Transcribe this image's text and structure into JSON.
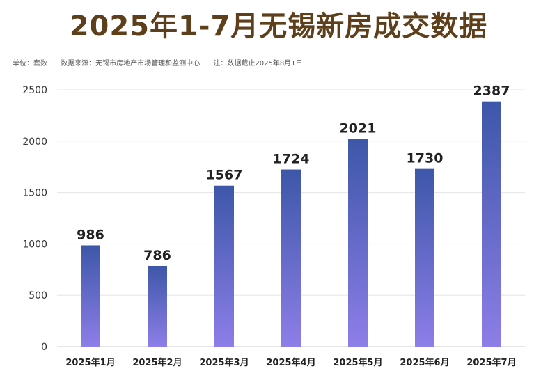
{
  "header": {
    "title": "2025年1-7月无锡新房成交数据",
    "unit_note": "单位：套数",
    "source_note": "数据来源：无锡市房地产市场管理和监测中心",
    "date_note": "注：数据截止2025年8月1日"
  },
  "colors": {
    "title": "#5e3f1c",
    "bar_top": "#3d57a8",
    "bar_bottom": "#8d7ee8",
    "grid": "#e5e5e5"
  },
  "chart_data": {
    "type": "bar",
    "title": "2025年1-7月无锡新房成交数据",
    "categories": [
      "2025年1月",
      "2025年2月",
      "2025年3月",
      "2025年4月",
      "2025年5月",
      "2025年6月",
      "2025年7月"
    ],
    "values": [
      986,
      786,
      1567,
      1724,
      2021,
      1730,
      2387
    ],
    "ylim": [
      0,
      2500
    ],
    "yticks": [
      0,
      500,
      1000,
      1500,
      2000,
      2500
    ],
    "xlabel": "",
    "ylabel": "",
    "grid": true,
    "legend": "none",
    "data_labels": true
  }
}
